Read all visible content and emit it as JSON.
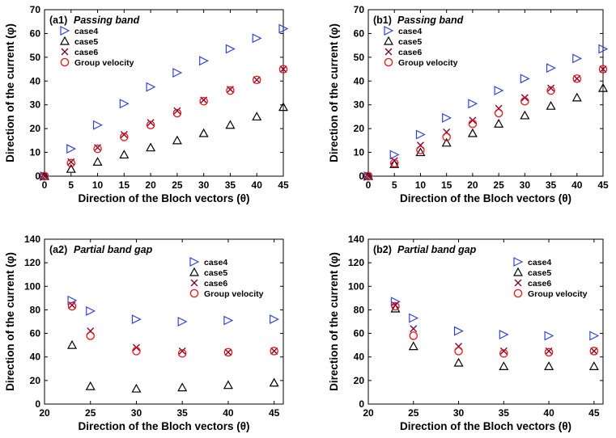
{
  "colors": {
    "case4": "#3344dd",
    "case5": "#000000",
    "case6": "#7a0a3a",
    "group": "#ee1111",
    "axis": "#000000"
  },
  "chart_data": [
    {
      "type": "scatter",
      "id": "a1",
      "panel_label": "(a1)",
      "title": "Passing band",
      "xlabel": "Direction of the Bloch vectors (θ)",
      "ylabel": "Direction of the current (φ)",
      "xlim": [
        0,
        45
      ],
      "ylim": [
        0,
        70
      ],
      "xticks": [
        0,
        5,
        10,
        15,
        20,
        25,
        30,
        35,
        40,
        45
      ],
      "yticks": [
        0,
        10,
        20,
        30,
        40,
        50,
        60,
        70
      ],
      "legend": [
        "case4",
        "case5",
        "case6",
        "Group velocity"
      ],
      "legend_position": "top-left",
      "x": [
        0,
        5,
        10,
        15,
        20,
        25,
        30,
        35,
        40,
        45
      ],
      "series": [
        {
          "name": "case4",
          "marker": "triangle-right",
          "values": [
            0,
            11.5,
            21.5,
            30.5,
            37.5,
            43.5,
            48.5,
            53.5,
            58,
            62
          ]
        },
        {
          "name": "case5",
          "marker": "triangle-up",
          "values": [
            0,
            3,
            6,
            9,
            12,
            15,
            18,
            21.5,
            25,
            29
          ]
        },
        {
          "name": "case6",
          "marker": "x",
          "values": [
            0,
            6,
            12,
            17.5,
            22.5,
            27.5,
            32,
            36.5,
            40.5,
            45
          ]
        },
        {
          "name": "Group velocity",
          "marker": "circle",
          "values": [
            0,
            5.5,
            11.5,
            16.5,
            21.5,
            26.5,
            31.5,
            36,
            40.5,
            45
          ]
        }
      ]
    },
    {
      "type": "scatter",
      "id": "b1",
      "panel_label": "(b1)",
      "title": "Passing band",
      "xlabel": "Direction of the Bloch vectors (θ)",
      "ylabel": "Direction of the current (φ)",
      "xlim": [
        0,
        45
      ],
      "ylim": [
        0,
        70
      ],
      "xticks": [
        0,
        5,
        10,
        15,
        20,
        25,
        30,
        35,
        40,
        45
      ],
      "yticks": [
        0,
        10,
        20,
        30,
        40,
        50,
        60,
        70
      ],
      "legend": [
        "case4",
        "case5",
        "case6",
        "Group velocity"
      ],
      "legend_position": "top-right",
      "x": [
        0,
        5,
        10,
        15,
        20,
        25,
        30,
        35,
        40,
        45
      ],
      "series": [
        {
          "name": "case4",
          "marker": "triangle-right",
          "values": [
            0,
            9,
            17.5,
            24.5,
            30.5,
            36,
            41,
            45.5,
            49.5,
            53.5
          ]
        },
        {
          "name": "case5",
          "marker": "triangle-up",
          "values": [
            0,
            5,
            10,
            14,
            18,
            22,
            25.5,
            29.5,
            33,
            37
          ]
        },
        {
          "name": "case6",
          "marker": "x",
          "values": [
            0,
            6.5,
            13,
            18.5,
            23.5,
            28.5,
            33,
            37,
            41,
            45
          ]
        },
        {
          "name": "Group velocity",
          "marker": "circle",
          "values": [
            0,
            5.5,
            11,
            16.5,
            22,
            26.5,
            31.5,
            36,
            41,
            45
          ]
        }
      ]
    },
    {
      "type": "scatter",
      "id": "a2",
      "panel_label": "(a2)",
      "title": "Partial band gap",
      "xlabel": "Direction of the Bloch vectors (θ)",
      "ylabel": "Direction of the current (φ)",
      "xlim": [
        20,
        46
      ],
      "ylim": [
        0,
        140
      ],
      "xticks": [
        20,
        25,
        30,
        35,
        40,
        45
      ],
      "yticks": [
        0,
        20,
        40,
        60,
        80,
        100,
        120,
        140
      ],
      "legend": [
        "case4",
        "case5",
        "case6",
        "Group velocity"
      ],
      "legend_position": "top-right",
      "x": [
        23,
        25,
        30,
        35,
        40,
        45
      ],
      "series": [
        {
          "name": "case4",
          "marker": "triangle-right",
          "values": [
            88,
            79,
            72,
            70,
            71,
            72
          ]
        },
        {
          "name": "case5",
          "marker": "triangle-up",
          "values": [
            50,
            15,
            13,
            14,
            16,
            18
          ]
        },
        {
          "name": "case6",
          "marker": "x",
          "values": [
            84,
            62,
            48,
            45,
            44,
            45
          ]
        },
        {
          "name": "Group velocity",
          "marker": "circle",
          "values": [
            83,
            58,
            45,
            43,
            44,
            45
          ]
        }
      ]
    },
    {
      "type": "scatter",
      "id": "b2",
      "panel_label": "(b2)",
      "title": "Partial band gap",
      "xlabel": "Direction of the Bloch vectors (θ)",
      "ylabel": "Direction of the current (φ)",
      "xlim": [
        20,
        46
      ],
      "ylim": [
        0,
        140
      ],
      "xticks": [
        20,
        25,
        30,
        35,
        40,
        45
      ],
      "yticks": [
        0,
        20,
        40,
        60,
        80,
        100,
        120,
        140
      ],
      "legend": [
        "case4",
        "case5",
        "case6",
        "Group velocity"
      ],
      "legend_position": "top-right",
      "x": [
        23,
        25,
        30,
        35,
        40,
        45
      ],
      "series": [
        {
          "name": "case4",
          "marker": "triangle-right",
          "values": [
            87,
            73,
            62,
            59,
            58,
            58
          ]
        },
        {
          "name": "case5",
          "marker": "triangle-up",
          "values": [
            81,
            49,
            35,
            32,
            32,
            32
          ]
        },
        {
          "name": "case6",
          "marker": "x",
          "values": [
            84,
            64,
            49,
            45,
            45,
            45
          ]
        },
        {
          "name": "Group velocity",
          "marker": "circle",
          "values": [
            83,
            58,
            45,
            43,
            44,
            45
          ]
        }
      ]
    }
  ]
}
